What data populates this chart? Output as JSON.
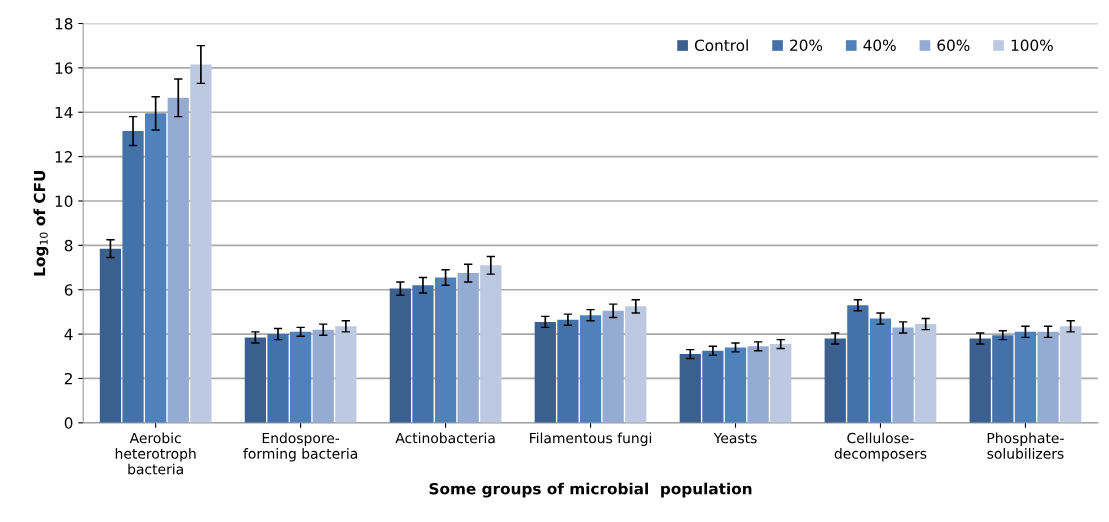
{
  "chart_data": {
    "type": "bar",
    "xlabel": "Some groups of microbial  population",
    "ylabel": "Log$_{10}$ of CFU",
    "categories": [
      "Aerobic\nheterotroph\nbacteria",
      "Endospore-\nforming bacteria",
      "Actinobacteria",
      "Filamentous fungi",
      "Yeasts",
      "Cellulose-\ndecomposers",
      "Phosphate-\nsolubilizers"
    ],
    "series": [
      {
        "name": "Control",
        "color": "#3b5f8e",
        "values": [
          7.85,
          3.85,
          6.05,
          4.55,
          3.1,
          3.8,
          3.8
        ],
        "errors": [
          0.4,
          0.25,
          0.3,
          0.25,
          0.2,
          0.25,
          0.25
        ]
      },
      {
        "name": "20%",
        "color": "#4472a8",
        "values": [
          13.15,
          4.0,
          6.2,
          4.65,
          3.25,
          5.3,
          3.95
        ],
        "errors": [
          0.65,
          0.25,
          0.35,
          0.25,
          0.2,
          0.25,
          0.2
        ]
      },
      {
        "name": "40%",
        "color": "#4f81bd",
        "values": [
          13.95,
          4.1,
          6.55,
          4.85,
          3.4,
          4.7,
          4.1
        ],
        "errors": [
          0.75,
          0.2,
          0.35,
          0.25,
          0.2,
          0.25,
          0.25
        ]
      },
      {
        "name": "60%",
        "color": "#95abd1",
        "values": [
          14.65,
          4.2,
          6.75,
          5.05,
          3.45,
          4.3,
          4.1
        ],
        "errors": [
          0.85,
          0.25,
          0.4,
          0.3,
          0.2,
          0.25,
          0.25
        ]
      },
      {
        "name": "100%",
        "color": "#bdc9e1",
        "values": [
          16.15,
          4.35,
          7.1,
          5.25,
          3.55,
          4.45,
          4.35
        ],
        "errors": [
          0.85,
          0.25,
          0.4,
          0.3,
          0.2,
          0.25,
          0.25
        ]
      }
    ],
    "ylim": [
      0,
      18
    ],
    "yticks": [
      0,
      2,
      4,
      6,
      8,
      10,
      12,
      14,
      16,
      18
    ],
    "grid": "y",
    "legend": "top right"
  }
}
